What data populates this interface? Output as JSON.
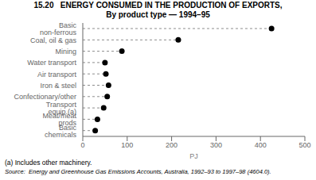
{
  "chart_data": {
    "type": "dot",
    "title": "15.20   ENERGY CONSUMED IN THE PRODUCTION OF EXPORTS,",
    "subtitle": "By product type — 1994–95",
    "categories": [
      "Basic non-ferrous",
      "Coal, oil & gas",
      "Mining",
      "Water transport",
      "Air transport",
      "Iron & steel",
      "Confectionary/other",
      "Transport equip.(a)",
      "Meat/meat prods",
      "Basic chemicals"
    ],
    "values": [
      425,
      215,
      88,
      50,
      52,
      58,
      55,
      47,
      33,
      28
    ],
    "xlabel": "PJ",
    "xlim": [
      0,
      500
    ],
    "xticks": [
      0,
      100,
      200,
      300,
      400,
      500
    ],
    "orientation": "horizontal",
    "color": "#000000",
    "line_style": "dashed",
    "grid": false,
    "annotations": [
      "(a) Includes other machinery.",
      "Source:  Energy and Greenhouse Gas Emissions Accounts, Australia, 1992–93 to 1997–98 (4604.0)."
    ]
  }
}
